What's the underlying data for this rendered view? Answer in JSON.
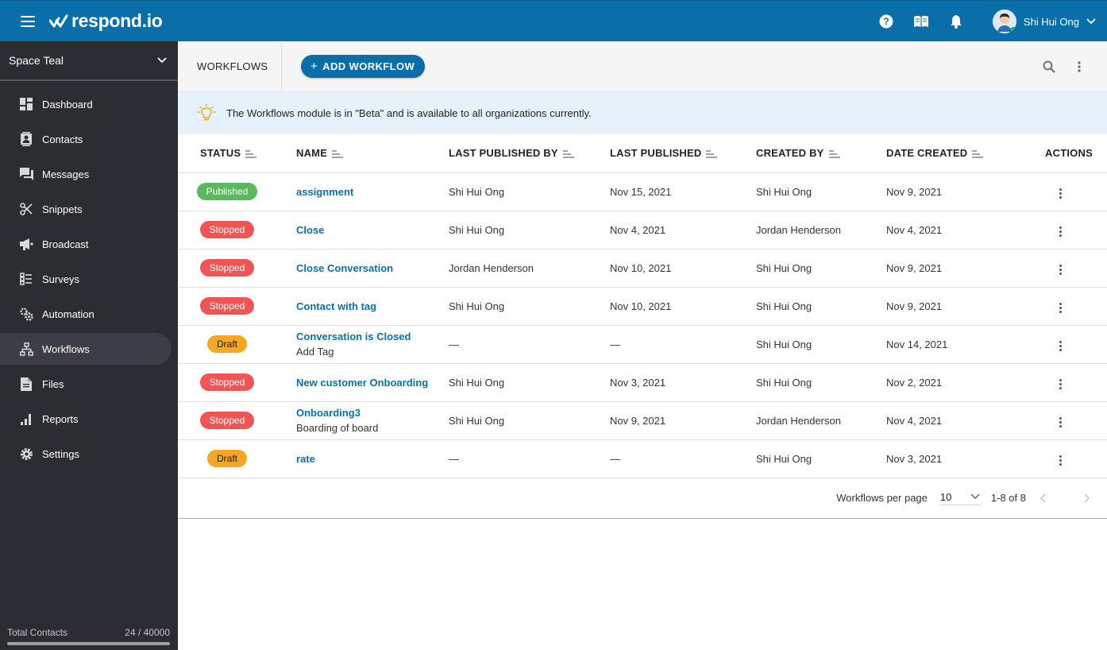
{
  "brand": {
    "name": "respond.io"
  },
  "user": {
    "name": "Shi Hui Ong"
  },
  "sidebar": {
    "workspace": "Space Teal",
    "items": [
      {
        "label": "Dashboard",
        "icon": "dashboard-icon"
      },
      {
        "label": "Contacts",
        "icon": "contacts-icon"
      },
      {
        "label": "Messages",
        "icon": "messages-icon"
      },
      {
        "label": "Snippets",
        "icon": "scissors-icon"
      },
      {
        "label": "Broadcast",
        "icon": "megaphone-icon"
      },
      {
        "label": "Surveys",
        "icon": "checklist-icon"
      },
      {
        "label": "Automation",
        "icon": "gears-icon"
      },
      {
        "label": "Workflows",
        "icon": "workflow-icon",
        "active": true
      },
      {
        "label": "Files",
        "icon": "file-icon"
      },
      {
        "label": "Reports",
        "icon": "bar-chart-icon"
      },
      {
        "label": "Settings",
        "icon": "gear-icon"
      }
    ],
    "total_contacts": {
      "label": "Total Contacts",
      "value": "24 / 40000",
      "fraction": 0.0006
    }
  },
  "header": {
    "title": "WORKFLOWS",
    "add_button": "ADD WORKFLOW"
  },
  "beta_notice": "The Workflows module is in \"Beta\" and is available to all organizations currently.",
  "table": {
    "columns": {
      "status": "STATUS",
      "name": "NAME",
      "last_published_by": "LAST PUBLISHED BY",
      "last_published": "LAST PUBLISHED",
      "created_by": "CREATED BY",
      "date_created": "DATE CREATED",
      "actions": "ACTIONS"
    },
    "rows": [
      {
        "status": "Published",
        "status_type": "published",
        "name": "assignment",
        "description": "",
        "last_published_by": "Shi Hui Ong",
        "last_published": "Nov 15, 2021",
        "created_by": "Shi Hui Ong",
        "date_created": "Nov 9, 2021"
      },
      {
        "status": "Stopped",
        "status_type": "stopped",
        "name": "Close",
        "description": "",
        "last_published_by": "Shi Hui Ong",
        "last_published": "Nov 4, 2021",
        "created_by": "Jordan Henderson",
        "date_created": "Nov 4, 2021"
      },
      {
        "status": "Stopped",
        "status_type": "stopped",
        "name": "Close Conversation",
        "description": "",
        "last_published_by": "Jordan Henderson",
        "last_published": "Nov 10, 2021",
        "created_by": "Shi Hui Ong",
        "date_created": "Nov 9, 2021"
      },
      {
        "status": "Stopped",
        "status_type": "stopped",
        "name": "Contact with tag",
        "description": "",
        "last_published_by": "Shi Hui Ong",
        "last_published": "Nov 10, 2021",
        "created_by": "Shi Hui Ong",
        "date_created": "Nov 9, 2021"
      },
      {
        "status": "Draft",
        "status_type": "draft",
        "name": "Conversation is Closed",
        "description": "Add Tag",
        "last_published_by": "—",
        "last_published": "—",
        "created_by": "Shi Hui Ong",
        "date_created": "Nov 14, 2021"
      },
      {
        "status": "Stopped",
        "status_type": "stopped",
        "name": "New customer Onboarding",
        "description": "",
        "last_published_by": "Shi Hui Ong",
        "last_published": "Nov 3, 2021",
        "created_by": "Shi Hui Ong",
        "date_created": "Nov 2, 2021"
      },
      {
        "status": "Stopped",
        "status_type": "stopped",
        "name": "Onboarding3",
        "description": "Boarding of board",
        "last_published_by": "Shi Hui Ong",
        "last_published": "Nov 9, 2021",
        "created_by": "Jordan Henderson",
        "date_created": "Nov 4, 2021"
      },
      {
        "status": "Draft",
        "status_type": "draft",
        "name": "rate",
        "description": "",
        "last_published_by": "—",
        "last_published": "—",
        "created_by": "Shi Hui Ong",
        "date_created": "Nov 3, 2021"
      }
    ]
  },
  "pagination": {
    "per_page_label": "Workflows per page",
    "per_page": "10",
    "range": "1-8 of 8"
  },
  "colors": {
    "brand": "#0a6fa8",
    "sidebar": "#2b2d33",
    "published": "#5cb85c",
    "stopped": "#f05454",
    "draft": "#f5a623",
    "beta_bg": "#e6f1fb"
  }
}
